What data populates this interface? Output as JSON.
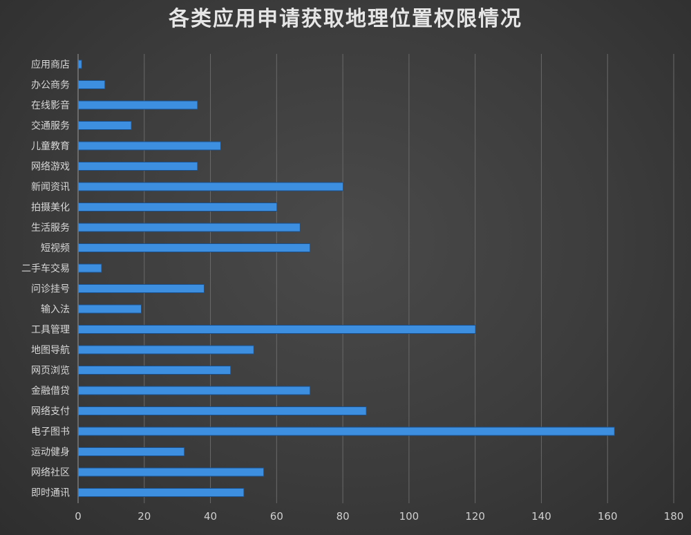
{
  "chart_data": {
    "type": "bar",
    "orientation": "horizontal",
    "title": "各类应用申请获取地理位置权限情况",
    "xlabel": "",
    "ylabel": "",
    "xlim": [
      0,
      180
    ],
    "xticks": [
      0,
      20,
      40,
      60,
      80,
      100,
      120,
      140,
      160,
      180
    ],
    "grid": true,
    "legend": "none",
    "colors": {
      "bar": "#3d8fe0",
      "bar_edge": "#1a4f8a",
      "grid": "#6a6a6a",
      "background": "#3c3c3c"
    },
    "categories": [
      "应用商店",
      "办公商务",
      "在线影音",
      "交通服务",
      "儿童教育",
      "网络游戏",
      "新闻资讯",
      "拍摄美化",
      "生活服务",
      "短视频",
      "二手车交易",
      "问诊挂号",
      "输入法",
      "工具管理",
      "地图导航",
      "网页浏览",
      "金融借贷",
      "网络支付",
      "电子图书",
      "运动健身",
      "网络社区",
      "即时通讯"
    ],
    "values": [
      1,
      8,
      36,
      16,
      43,
      36,
      80,
      60,
      67,
      70,
      7,
      38,
      19,
      120,
      53,
      46,
      70,
      87,
      162,
      32,
      56,
      50
    ]
  }
}
